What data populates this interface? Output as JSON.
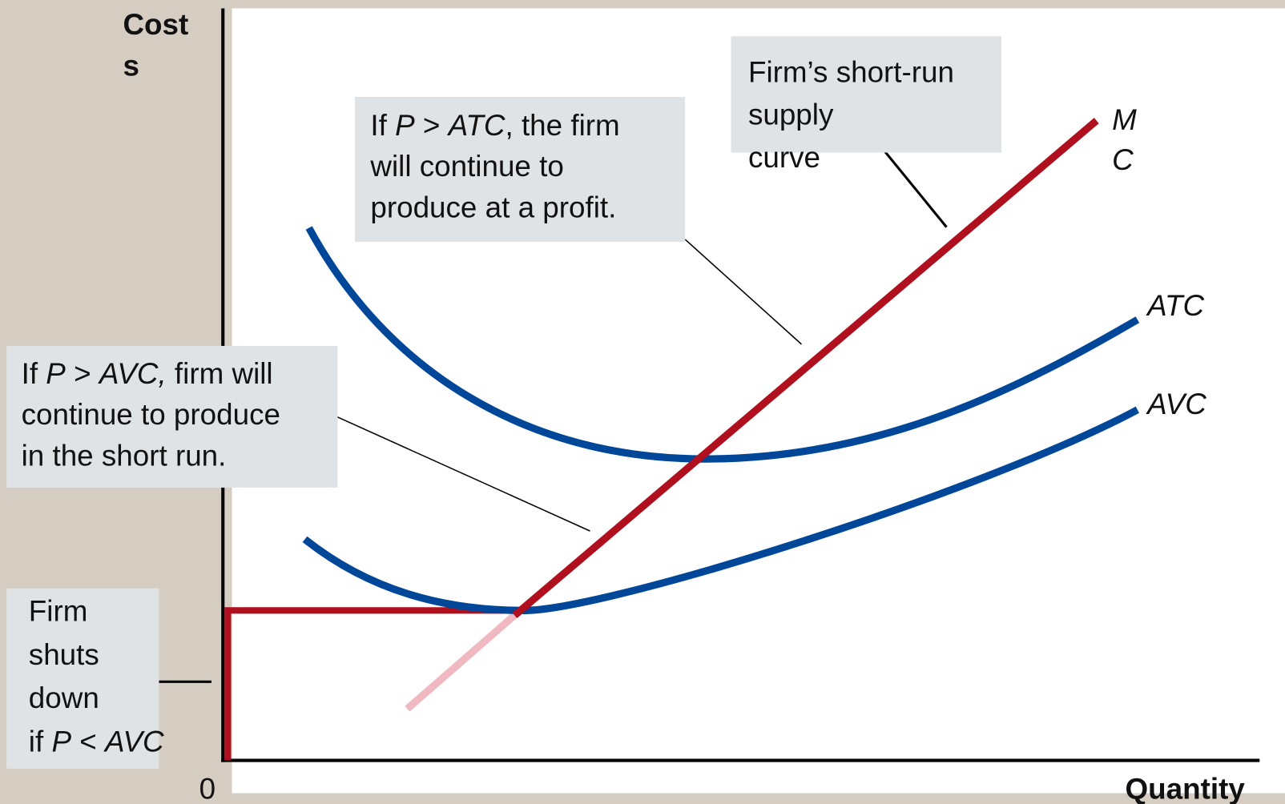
{
  "y_axis_label": [
    "Cost",
    "s"
  ],
  "x_axis_label": "Quantity",
  "origin_label": "0",
  "curve_labels": {
    "mc": [
      "M",
      "C"
    ],
    "atc": "ATC",
    "avc": "AVC"
  },
  "annotations": [
    {
      "lines": [
        [
          {
            "t": "If "
          },
          {
            "t": "P",
            "i": true
          },
          {
            "t": " > "
          },
          {
            "t": "ATC",
            "i": true
          },
          {
            "t": ", the firm"
          }
        ],
        [
          {
            "t": "will continue to"
          }
        ],
        [
          {
            "t": "produce at a profit."
          }
        ]
      ]
    },
    {
      "lines": [
        [
          {
            "t": "Firm’s short-run"
          }
        ],
        [
          {
            "t": "supply"
          }
        ],
        [
          {
            "t": "curve"
          }
        ]
      ]
    },
    {
      "lines": [
        [
          {
            "t": "If "
          },
          {
            "t": "P",
            "i": true
          },
          {
            "t": " > "
          },
          {
            "t": "AVC,",
            "i": true
          },
          {
            "t": " firm will"
          }
        ],
        [
          {
            "t": "continue to produce"
          }
        ],
        [
          {
            "t": "in the short run."
          }
        ]
      ]
    },
    {
      "lines": [
        [
          {
            "t": "Firm"
          }
        ],
        [
          {
            "t": "shuts"
          }
        ],
        [
          {
            "t": "down"
          }
        ],
        [
          {
            "t": "if "
          },
          {
            "t": "P",
            "i": true
          },
          {
            "t": " < "
          },
          {
            "t": "AVC",
            "i": true
          }
        ]
      ]
    }
  ]
}
